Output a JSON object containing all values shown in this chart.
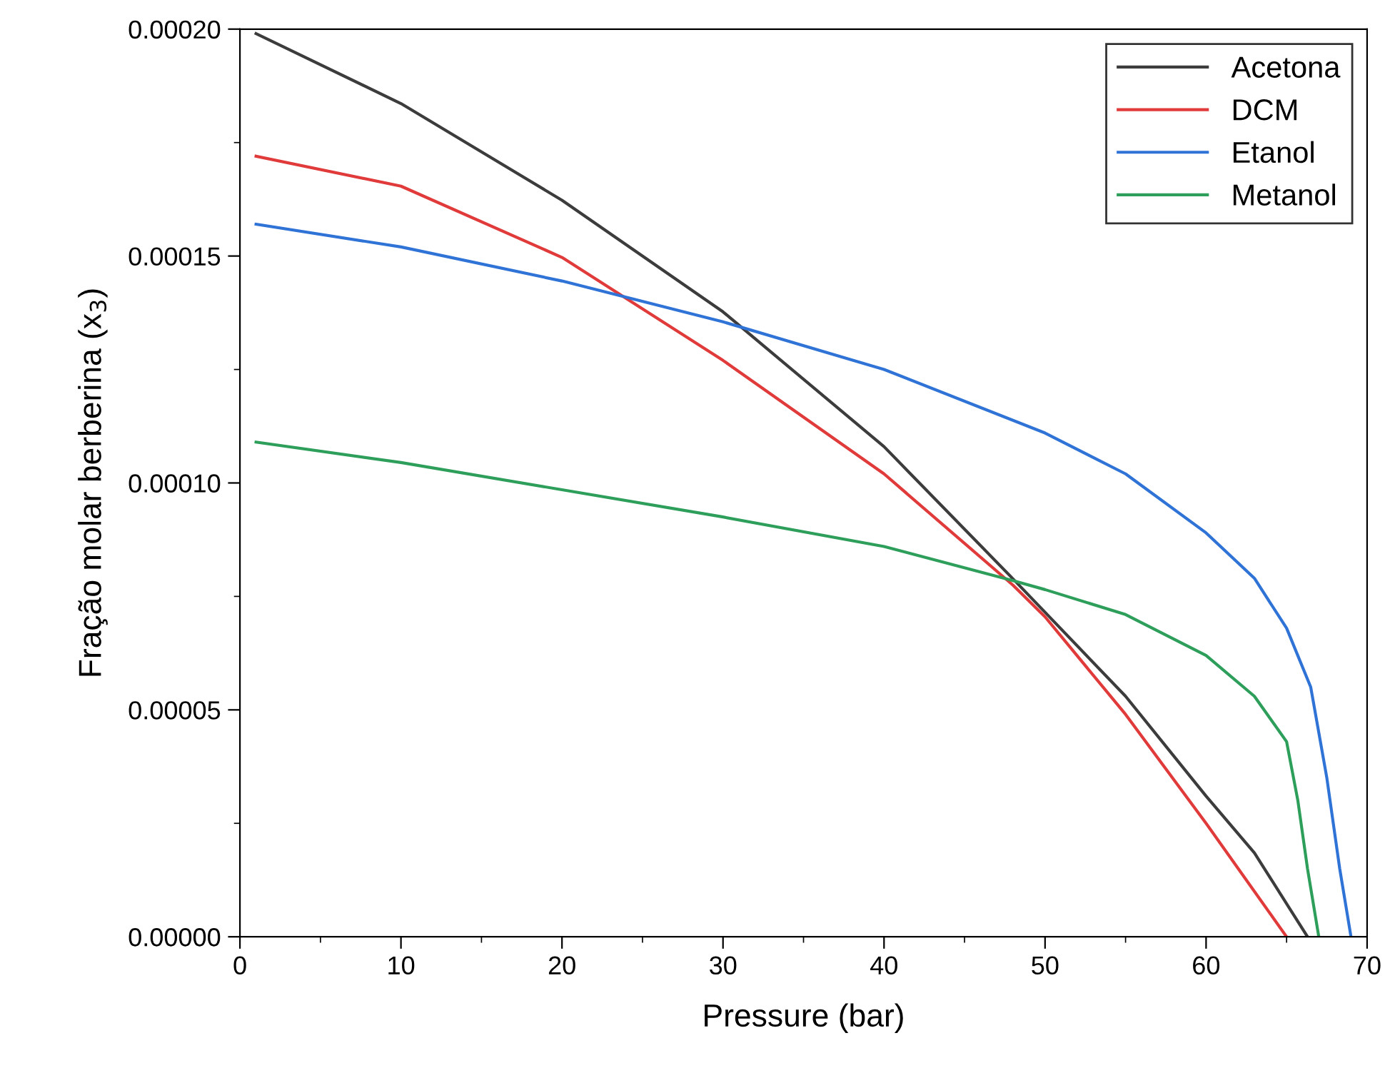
{
  "chart_data": {
    "type": "line",
    "xlabel": "Pressure (bar)",
    "ylabel": "Fração molar berberina (x$_{3}$)",
    "xlim": [
      0,
      70
    ],
    "xticks": [
      0,
      10,
      20,
      30,
      40,
      50,
      60,
      70
    ],
    "ylim": [
      0,
      0.0002
    ],
    "yticks": [
      {
        "value": 0,
        "label": "0.00000"
      },
      {
        "value": 5e-05,
        "label": "0.00005"
      },
      {
        "value": 0.0001,
        "label": "0.00010"
      },
      {
        "value": 0.00015,
        "label": "0.00015"
      },
      {
        "value": 0.0002,
        "label": "0.00020"
      }
    ],
    "grid": false,
    "legend": "top right",
    "marker": "none",
    "line_style": "solid",
    "series": [
      {
        "name": "Acetona",
        "color": "#3c3c3c",
        "x": [
          1,
          10,
          20,
          30,
          40,
          48,
          50,
          55,
          60,
          63,
          66.3
        ],
        "values": [
          0.000199,
          0.0001836,
          0.0001623,
          0.0001377,
          0.000108,
          7.89e-05,
          7.15e-05,
          5.3e-05,
          3.1e-05,
          1.85e-05,
          0
        ]
      },
      {
        "name": "DCM",
        "color": "#e03a3a",
        "x": [
          1,
          10,
          20,
          30,
          40,
          48,
          50,
          55,
          60,
          65
        ],
        "values": [
          0.000172,
          0.0001654,
          0.0001497,
          0.000127,
          0.000102,
          7.75e-05,
          7.05e-05,
          4.9e-05,
          2.5e-05,
          0
        ]
      },
      {
        "name": "Etanol",
        "color": "#2f73d6",
        "x": [
          1,
          10,
          20,
          30,
          40,
          50,
          55,
          60,
          63,
          65,
          66.5,
          67.5,
          68.3,
          69
        ],
        "values": [
          0.000157,
          0.000152,
          0.0001445,
          0.0001355,
          0.000125,
          0.000111,
          0.000102,
          8.9e-05,
          7.9e-05,
          6.8e-05,
          5.5e-05,
          3.5e-05,
          1.5e-05,
          0
        ]
      },
      {
        "name": "Metanol",
        "color": "#2e9e5b",
        "x": [
          1,
          10,
          20,
          30,
          40,
          48,
          50,
          55,
          60,
          63,
          65,
          65.7,
          66.3,
          67
        ],
        "values": [
          0.000109,
          0.0001045,
          9.85e-05,
          9.25e-05,
          8.6e-05,
          7.85e-05,
          7.65e-05,
          7.1e-05,
          6.2e-05,
          5.3e-05,
          4.3e-05,
          3e-05,
          1.5e-05,
          0
        ]
      }
    ]
  }
}
